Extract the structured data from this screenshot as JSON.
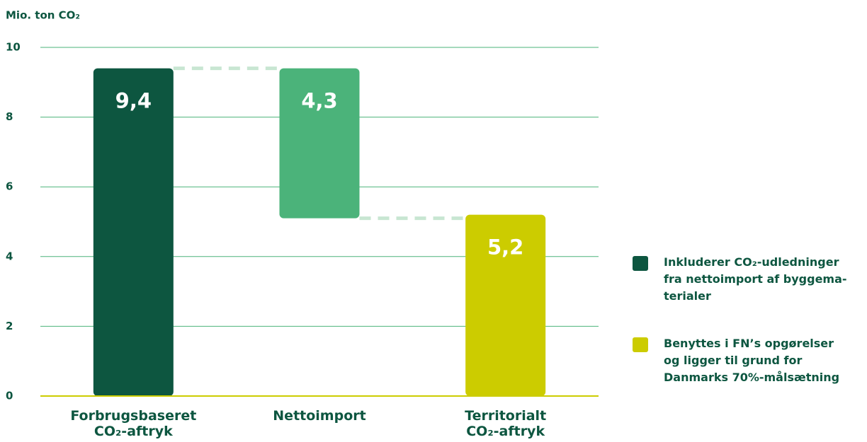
{
  "chart_data": {
    "type": "waterfall",
    "y_label": "Mio. ton CO₂",
    "categories": [
      "Forbrugsbaseret\nCO₂-aftryk",
      "Nettoimport",
      "Territorialt\nCO₂-aftryk"
    ],
    "series": [
      {
        "name": "Mio. ton CO₂",
        "values": [
          9.4,
          -4.3,
          5.2
        ],
        "value_labels": [
          "9,4",
          "4,3",
          "5,2"
        ],
        "kinds": [
          "total",
          "delta",
          "total"
        ],
        "colors": [
          "#0d5640",
          "#4bb37a",
          "#cccc00"
        ]
      }
    ],
    "ylim": [
      0,
      10
    ],
    "yticks": [
      0,
      2,
      4,
      6,
      8,
      10
    ],
    "grid": true,
    "legend": [
      {
        "label": "Inkluderer CO₂-udledninger\nfra nettoimport af byggema-\nterialer",
        "color": "#0d5640"
      },
      {
        "label": "Benyttes i FN’s opgørelser\nog ligger til grund for\nDanmarks 70%-målsætning",
        "color": "#cccc00"
      }
    ]
  }
}
